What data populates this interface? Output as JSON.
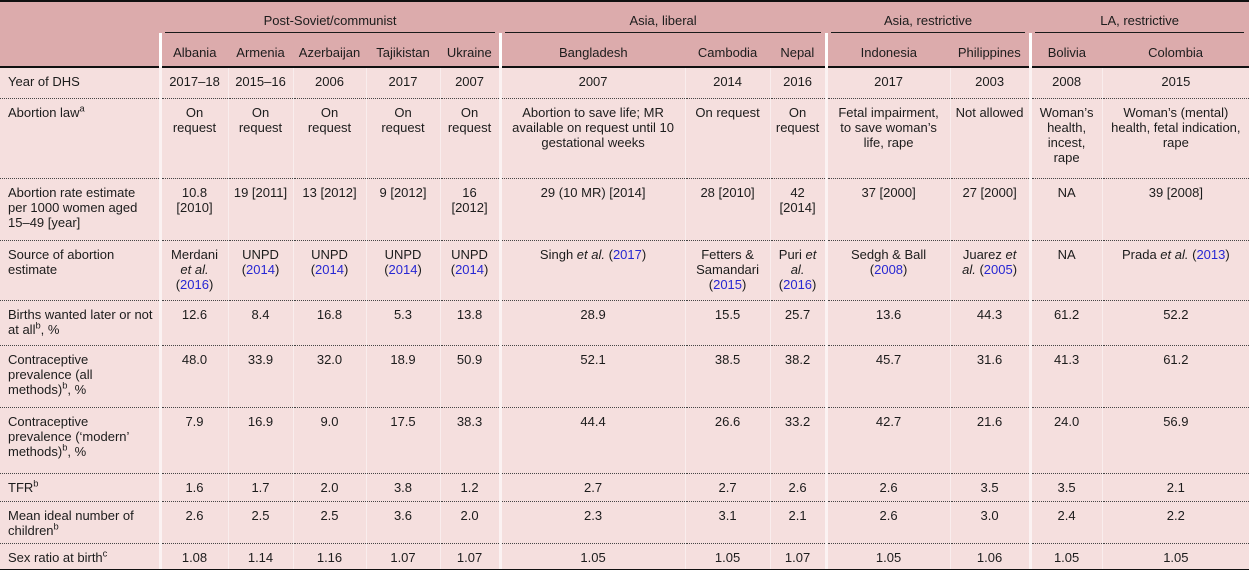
{
  "colors": {
    "header_bg": "#dcabac",
    "body_bg": "#f5dfde",
    "citation_blue": "#2727d3",
    "rule_black": "#101010",
    "text": "#1c1c1c"
  },
  "table": {
    "groups": [
      {
        "label": "Post-Soviet/communist",
        "span": 5
      },
      {
        "label": "Asia, liberal",
        "span": 3
      },
      {
        "label": "Asia, restrictive",
        "span": 2
      },
      {
        "label": "LA, restrictive",
        "span": 2
      }
    ],
    "countries": [
      "Albania",
      "Armenia",
      "Azerbaijan",
      "Tajikistan",
      "Ukraine",
      "Bangladesh",
      "Cambodia",
      "Nepal",
      "Indonesia",
      "Philippines",
      "Bolivia",
      "Colombia"
    ],
    "rows": [
      {
        "id": "year-of-dhs",
        "label": "Year of DHS",
        "values": [
          "2017–18",
          "2015–16",
          "2006",
          "2017",
          "2007",
          "2007",
          "2014",
          "2016",
          "2017",
          "2003",
          "2008",
          "2015"
        ]
      },
      {
        "id": "abortion-law",
        "label": [
          {
            "t": "text",
            "v": "Abortion law"
          },
          {
            "t": "sup",
            "v": "a"
          }
        ],
        "values": [
          "On request",
          "On request",
          "On request",
          "On request",
          "On request",
          "Abortion to save life; MR available on request until 10 gestational weeks",
          "On request",
          "On request",
          "Fetal impairment, to save woman’s life, rape",
          "Not allowed",
          "Woman’s health, incest, rape",
          "Woman’s (mental) health, fetal indication, rape"
        ]
      },
      {
        "id": "abortion-rate",
        "label": "Abortion rate estimate per 1000 women aged 15–49 [year]",
        "values": [
          "10.8 [2010]",
          "19 [2011]",
          "13 [2012]",
          "9 [2012]",
          "16 [2012]",
          "29 (10 MR) [2014]",
          "28 [2010]",
          "42 [2014]",
          "37 [2000]",
          "27 [2000]",
          "NA",
          "39 [2008]"
        ]
      },
      {
        "id": "abortion-source",
        "label": "Source of abortion estimate",
        "values": [
          [
            {
              "t": "text",
              "v": "Merdani "
            },
            {
              "t": "it",
              "v": "et al."
            },
            {
              "t": "text",
              "v": " ("
            },
            {
              "t": "cite",
              "v": "2016"
            },
            {
              "t": "text",
              "v": ")"
            }
          ],
          [
            {
              "t": "text",
              "v": "UNPD ("
            },
            {
              "t": "cite",
              "v": "2014"
            },
            {
              "t": "text",
              "v": ")"
            }
          ],
          [
            {
              "t": "text",
              "v": "UNPD ("
            },
            {
              "t": "cite",
              "v": "2014"
            },
            {
              "t": "text",
              "v": ")"
            }
          ],
          [
            {
              "t": "text",
              "v": "UNPD ("
            },
            {
              "t": "cite",
              "v": "2014"
            },
            {
              "t": "text",
              "v": ")"
            }
          ],
          [
            {
              "t": "text",
              "v": "UNPD ("
            },
            {
              "t": "cite",
              "v": "2014"
            },
            {
              "t": "text",
              "v": ")"
            }
          ],
          [
            {
              "t": "text",
              "v": "Singh "
            },
            {
              "t": "it",
              "v": "et al."
            },
            {
              "t": "text",
              "v": " ("
            },
            {
              "t": "cite",
              "v": "2017"
            },
            {
              "t": "text",
              "v": ")"
            }
          ],
          [
            {
              "t": "text",
              "v": "Fetters & Samandari ("
            },
            {
              "t": "cite",
              "v": "2015"
            },
            {
              "t": "text",
              "v": ")"
            }
          ],
          [
            {
              "t": "text",
              "v": "Puri "
            },
            {
              "t": "it",
              "v": "et al."
            },
            {
              "t": "text",
              "v": " ("
            },
            {
              "t": "cite",
              "v": "2016"
            },
            {
              "t": "text",
              "v": ")"
            }
          ],
          [
            {
              "t": "text",
              "v": "Sedgh & Ball ("
            },
            {
              "t": "cite",
              "v": "2008"
            },
            {
              "t": "text",
              "v": ")"
            }
          ],
          [
            {
              "t": "text",
              "v": "Juarez "
            },
            {
              "t": "it",
              "v": "et al."
            },
            {
              "t": "text",
              "v": " ("
            },
            {
              "t": "cite",
              "v": "2005"
            },
            {
              "t": "text",
              "v": ")"
            }
          ],
          "NA",
          [
            {
              "t": "text",
              "v": "Prada "
            },
            {
              "t": "it",
              "v": "et al."
            },
            {
              "t": "text",
              "v": " ("
            },
            {
              "t": "cite",
              "v": "2013"
            },
            {
              "t": "text",
              "v": ")"
            }
          ]
        ]
      },
      {
        "id": "births-wanted",
        "label": [
          {
            "t": "text",
            "v": "Births wanted later or not at all"
          },
          {
            "t": "sup",
            "v": "b"
          },
          {
            "t": "text",
            "v": ", %"
          }
        ],
        "values": [
          "12.6",
          "8.4",
          "16.8",
          "5.3",
          "13.8",
          "28.9",
          "15.5",
          "25.7",
          "13.6",
          "44.3",
          "61.2",
          "52.2"
        ]
      },
      {
        "id": "contraceptive-all",
        "label": [
          {
            "t": "text",
            "v": "Contraceptive prevalence (all methods)"
          },
          {
            "t": "sup",
            "v": "b"
          },
          {
            "t": "text",
            "v": ", %"
          }
        ],
        "values": [
          "48.0",
          "33.9",
          "32.0",
          "18.9",
          "50.9",
          "52.1",
          "38.5",
          "38.2",
          "45.7",
          "31.6",
          "41.3",
          "61.2"
        ]
      },
      {
        "id": "contraceptive-modern",
        "label": [
          {
            "t": "text",
            "v": "Contraceptive prevalence (‘modern’ methods)"
          },
          {
            "t": "sup",
            "v": "b"
          },
          {
            "t": "text",
            "v": ", %"
          }
        ],
        "values": [
          "7.9",
          "16.9",
          "9.0",
          "17.5",
          "38.3",
          "44.4",
          "26.6",
          "33.2",
          "42.7",
          "21.6",
          "24.0",
          "56.9"
        ]
      },
      {
        "id": "tfr",
        "label": [
          {
            "t": "text",
            "v": "TFR"
          },
          {
            "t": "sup",
            "v": "b"
          }
        ],
        "values": [
          "1.6",
          "1.7",
          "2.0",
          "3.8",
          "1.2",
          "2.7",
          "2.7",
          "2.6",
          "2.6",
          "3.5",
          "3.5",
          "2.1"
        ]
      },
      {
        "id": "mean-ideal-children",
        "label": [
          {
            "t": "text",
            "v": "Mean ideal number of children"
          },
          {
            "t": "sup",
            "v": "b"
          }
        ],
        "values": [
          "2.6",
          "2.5",
          "2.5",
          "3.6",
          "2.0",
          "2.3",
          "3.1",
          "2.1",
          "2.6",
          "3.0",
          "2.4",
          "2.2"
        ]
      },
      {
        "id": "sex-ratio",
        "label": [
          {
            "t": "text",
            "v": "Sex ratio at birth"
          },
          {
            "t": "sup",
            "v": "c"
          }
        ],
        "values": [
          "1.08",
          "1.14",
          "1.16",
          "1.07",
          "1.07",
          "1.05",
          "1.05",
          "1.07",
          "1.05",
          "1.06",
          "1.05",
          "1.05"
        ]
      }
    ]
  }
}
